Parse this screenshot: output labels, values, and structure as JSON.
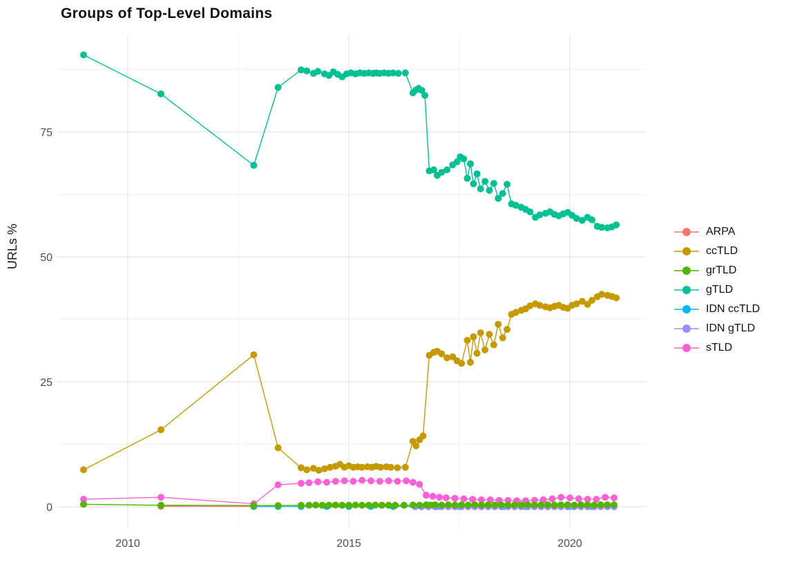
{
  "chart_data": {
    "type": "line",
    "title": "Groups of Top-Level Domains",
    "xlabel": "",
    "ylabel": "URLs %",
    "x_ticks": [
      2010,
      2015,
      2020
    ],
    "x_minor_ticks": [
      2012.5,
      2017.5
    ],
    "y_ticks": [
      0,
      25,
      50,
      75
    ],
    "y_minor_ticks": [
      12.5,
      37.5,
      62.5,
      87.5
    ],
    "x_range": [
      2008.4,
      2021.7
    ],
    "y_range": [
      -4.5,
      94.5
    ],
    "grid": "major+minor, no axis lines (theme_minimal)",
    "legend_position": "right",
    "series": [
      {
        "name": "ARPA",
        "color": "#F8766D",
        "points": [
          [
            2010.75,
            0.1
          ],
          [
            2012.85,
            0.08
          ]
        ]
      },
      {
        "name": "ccTLD",
        "color": "#C49A00",
        "points": [
          [
            2009.0,
            7.4
          ],
          [
            2010.75,
            15.4
          ],
          [
            2012.85,
            30.4
          ],
          [
            2013.4,
            11.8
          ],
          [
            2013.92,
            7.8
          ],
          [
            2014.05,
            7.4
          ],
          [
            2014.2,
            7.7
          ],
          [
            2014.32,
            7.3
          ],
          [
            2014.45,
            7.6
          ],
          [
            2014.58,
            7.9
          ],
          [
            2014.7,
            8.1
          ],
          [
            2014.8,
            8.5
          ],
          [
            2014.9,
            7.9
          ],
          [
            2015.0,
            8.2
          ],
          [
            2015.1,
            7.9
          ],
          [
            2015.2,
            8.0
          ],
          [
            2015.3,
            7.9
          ],
          [
            2015.42,
            8.0
          ],
          [
            2015.52,
            7.9
          ],
          [
            2015.62,
            8.1
          ],
          [
            2015.72,
            7.9
          ],
          [
            2015.85,
            8.0
          ],
          [
            2015.95,
            7.9
          ],
          [
            2016.1,
            7.8
          ],
          [
            2016.28,
            7.9
          ],
          [
            2016.45,
            13.1
          ],
          [
            2016.52,
            12.2
          ],
          [
            2016.6,
            13.4
          ],
          [
            2016.68,
            14.2
          ],
          [
            2016.82,
            30.3
          ],
          [
            2016.92,
            30.9
          ],
          [
            2017.0,
            31.1
          ],
          [
            2017.1,
            30.6
          ],
          [
            2017.22,
            29.8
          ],
          [
            2017.35,
            30.0
          ],
          [
            2017.45,
            29.2
          ],
          [
            2017.55,
            28.7
          ],
          [
            2017.68,
            33.3
          ],
          [
            2017.75,
            28.9
          ],
          [
            2017.82,
            34.0
          ],
          [
            2017.9,
            30.7
          ],
          [
            2017.98,
            34.8
          ],
          [
            2018.08,
            31.4
          ],
          [
            2018.18,
            34.5
          ],
          [
            2018.28,
            32.4
          ],
          [
            2018.38,
            36.5
          ],
          [
            2018.48,
            33.8
          ],
          [
            2018.58,
            35.5
          ],
          [
            2018.68,
            38.5
          ],
          [
            2018.78,
            38.9
          ],
          [
            2018.9,
            39.3
          ],
          [
            2019.0,
            39.6
          ],
          [
            2019.1,
            40.2
          ],
          [
            2019.22,
            40.6
          ],
          [
            2019.32,
            40.3
          ],
          [
            2019.45,
            40.0
          ],
          [
            2019.55,
            39.8
          ],
          [
            2019.65,
            40.1
          ],
          [
            2019.75,
            40.3
          ],
          [
            2019.85,
            39.9
          ],
          [
            2019.95,
            39.7
          ],
          [
            2020.05,
            40.3
          ],
          [
            2020.15,
            40.6
          ],
          [
            2020.28,
            41.1
          ],
          [
            2020.4,
            40.5
          ],
          [
            2020.5,
            41.3
          ],
          [
            2020.62,
            42.0
          ],
          [
            2020.72,
            42.5
          ],
          [
            2020.85,
            42.3
          ],
          [
            2020.95,
            42.1
          ],
          [
            2021.05,
            41.8
          ]
        ]
      },
      {
        "name": "grTLD",
        "color": "#53B400",
        "points": [
          [
            2009.0,
            0.5
          ],
          [
            2010.75,
            0.3
          ],
          [
            2012.85,
            0.25
          ],
          [
            2013.4,
            0.25
          ],
          [
            2013.92,
            0.3
          ],
          [
            2014.1,
            0.3
          ],
          [
            2014.25,
            0.35
          ],
          [
            2014.4,
            0.3
          ],
          [
            2014.55,
            0.3
          ],
          [
            2014.7,
            0.35
          ],
          [
            2014.85,
            0.3
          ],
          [
            2015.0,
            0.3
          ],
          [
            2015.15,
            0.35
          ],
          [
            2015.3,
            0.3
          ],
          [
            2015.45,
            0.3
          ],
          [
            2015.6,
            0.35
          ],
          [
            2015.75,
            0.3
          ],
          [
            2015.9,
            0.3
          ],
          [
            2016.05,
            0.3
          ],
          [
            2016.25,
            0.3
          ],
          [
            2016.45,
            0.35
          ],
          [
            2016.6,
            0.3
          ],
          [
            2016.75,
            0.4
          ],
          [
            2016.85,
            0.35
          ],
          [
            2016.95,
            0.4
          ],
          [
            2017.1,
            0.35
          ],
          [
            2017.25,
            0.4
          ],
          [
            2017.4,
            0.35
          ],
          [
            2017.55,
            0.4
          ],
          [
            2017.7,
            0.35
          ],
          [
            2017.85,
            0.4
          ],
          [
            2018.0,
            0.35
          ],
          [
            2018.15,
            0.4
          ],
          [
            2018.3,
            0.35
          ],
          [
            2018.45,
            0.4
          ],
          [
            2018.6,
            0.35
          ],
          [
            2018.75,
            0.4
          ],
          [
            2018.9,
            0.35
          ],
          [
            2019.05,
            0.4
          ],
          [
            2019.2,
            0.35
          ],
          [
            2019.35,
            0.4
          ],
          [
            2019.5,
            0.4
          ],
          [
            2019.65,
            0.35
          ],
          [
            2019.8,
            0.4
          ],
          [
            2019.95,
            0.4
          ],
          [
            2020.1,
            0.35
          ],
          [
            2020.25,
            0.4
          ],
          [
            2020.4,
            0.4
          ],
          [
            2020.55,
            0.35
          ],
          [
            2020.7,
            0.4
          ],
          [
            2020.85,
            0.4
          ],
          [
            2021.0,
            0.4
          ]
        ]
      },
      {
        "name": "gTLD",
        "color": "#00C094",
        "points": [
          [
            2009.0,
            90.4
          ],
          [
            2010.75,
            82.6
          ],
          [
            2012.85,
            68.3
          ],
          [
            2013.4,
            83.9
          ],
          [
            2013.92,
            87.4
          ],
          [
            2014.05,
            87.2
          ],
          [
            2014.2,
            86.7
          ],
          [
            2014.3,
            87.1
          ],
          [
            2014.45,
            86.6
          ],
          [
            2014.55,
            86.3
          ],
          [
            2014.65,
            87.0
          ],
          [
            2014.75,
            86.5
          ],
          [
            2014.85,
            86.0
          ],
          [
            2014.95,
            86.6
          ],
          [
            2015.05,
            86.8
          ],
          [
            2015.15,
            86.6
          ],
          [
            2015.25,
            86.8
          ],
          [
            2015.35,
            86.7
          ],
          [
            2015.45,
            86.8
          ],
          [
            2015.55,
            86.7
          ],
          [
            2015.62,
            86.8
          ],
          [
            2015.7,
            86.7
          ],
          [
            2015.8,
            86.8
          ],
          [
            2015.9,
            86.7
          ],
          [
            2016.0,
            86.8
          ],
          [
            2016.12,
            86.7
          ],
          [
            2016.28,
            86.8
          ],
          [
            2016.45,
            82.8
          ],
          [
            2016.52,
            83.4
          ],
          [
            2016.58,
            83.7
          ],
          [
            2016.65,
            83.3
          ],
          [
            2016.72,
            82.3
          ],
          [
            2016.82,
            67.2
          ],
          [
            2016.92,
            67.4
          ],
          [
            2017.0,
            66.3
          ],
          [
            2017.1,
            66.9
          ],
          [
            2017.22,
            67.4
          ],
          [
            2017.35,
            68.4
          ],
          [
            2017.45,
            69.0
          ],
          [
            2017.52,
            70.0
          ],
          [
            2017.6,
            69.6
          ],
          [
            2017.68,
            65.7
          ],
          [
            2017.75,
            68.6
          ],
          [
            2017.82,
            64.6
          ],
          [
            2017.9,
            66.6
          ],
          [
            2017.98,
            63.6
          ],
          [
            2018.08,
            65.1
          ],
          [
            2018.18,
            63.3
          ],
          [
            2018.28,
            64.7
          ],
          [
            2018.38,
            61.7
          ],
          [
            2018.48,
            62.7
          ],
          [
            2018.58,
            64.5
          ],
          [
            2018.68,
            60.6
          ],
          [
            2018.78,
            60.3
          ],
          [
            2018.9,
            59.9
          ],
          [
            2019.0,
            59.5
          ],
          [
            2019.1,
            59.0
          ],
          [
            2019.22,
            57.9
          ],
          [
            2019.32,
            58.4
          ],
          [
            2019.45,
            58.7
          ],
          [
            2019.55,
            59.0
          ],
          [
            2019.65,
            58.5
          ],
          [
            2019.75,
            58.2
          ],
          [
            2019.85,
            58.6
          ],
          [
            2019.95,
            58.9
          ],
          [
            2020.05,
            58.3
          ],
          [
            2020.15,
            57.7
          ],
          [
            2020.28,
            57.3
          ],
          [
            2020.4,
            57.9
          ],
          [
            2020.5,
            57.4
          ],
          [
            2020.62,
            56.1
          ],
          [
            2020.72,
            55.9
          ],
          [
            2020.85,
            55.8
          ],
          [
            2020.95,
            56.0
          ],
          [
            2021.05,
            56.4
          ]
        ]
      },
      {
        "name": "IDN ccTLD",
        "color": "#00B6EB",
        "points": [
          [
            2012.85,
            0.05
          ],
          [
            2013.4,
            0.05
          ],
          [
            2013.92,
            0.05
          ],
          [
            2014.5,
            0.05
          ],
          [
            2015.0,
            0.05
          ],
          [
            2015.5,
            0.05
          ],
          [
            2016.0,
            0.05
          ],
          [
            2016.5,
            0.05
          ],
          [
            2017.0,
            0.05
          ],
          [
            2017.5,
            0.05
          ],
          [
            2018.0,
            0.05
          ],
          [
            2018.5,
            0.05
          ],
          [
            2019.0,
            0.05
          ],
          [
            2019.5,
            0.05
          ],
          [
            2020.0,
            0.05
          ],
          [
            2020.5,
            0.05
          ],
          [
            2021.0,
            0.05
          ]
        ]
      },
      {
        "name": "IDN gTLD",
        "color": "#A58AFF",
        "points": [
          [
            2016.5,
            0.0
          ],
          [
            2016.65,
            0.0
          ],
          [
            2016.8,
            0.0
          ],
          [
            2016.95,
            0.0
          ],
          [
            2017.1,
            0.0
          ],
          [
            2017.25,
            0.0
          ],
          [
            2017.4,
            0.0
          ],
          [
            2017.55,
            0.0
          ],
          [
            2017.7,
            0.0
          ],
          [
            2017.85,
            0.0
          ],
          [
            2018.0,
            0.0
          ],
          [
            2018.15,
            0.0
          ],
          [
            2018.3,
            0.0
          ],
          [
            2018.45,
            0.0
          ],
          [
            2018.6,
            0.0
          ],
          [
            2018.75,
            0.0
          ],
          [
            2018.9,
            0.0
          ],
          [
            2019.05,
            0.0
          ],
          [
            2019.2,
            0.0
          ],
          [
            2019.35,
            0.0
          ],
          [
            2019.5,
            0.0
          ],
          [
            2019.65,
            0.0
          ],
          [
            2019.8,
            0.0
          ],
          [
            2019.95,
            0.0
          ],
          [
            2020.1,
            0.0
          ],
          [
            2020.25,
            0.0
          ],
          [
            2020.4,
            0.0
          ],
          [
            2020.55,
            0.0
          ],
          [
            2020.7,
            0.0
          ],
          [
            2020.85,
            0.0
          ],
          [
            2021.0,
            0.0
          ]
        ]
      },
      {
        "name": "sTLD",
        "color": "#FB61D7",
        "points": [
          [
            2009.0,
            1.5
          ],
          [
            2010.75,
            1.9
          ],
          [
            2012.85,
            0.6
          ],
          [
            2013.4,
            4.4
          ],
          [
            2013.92,
            4.7
          ],
          [
            2014.1,
            4.8
          ],
          [
            2014.3,
            5.0
          ],
          [
            2014.5,
            4.9
          ],
          [
            2014.7,
            5.1
          ],
          [
            2014.9,
            5.2
          ],
          [
            2015.1,
            5.1
          ],
          [
            2015.3,
            5.3
          ],
          [
            2015.5,
            5.2
          ],
          [
            2015.7,
            5.1
          ],
          [
            2015.9,
            5.2
          ],
          [
            2016.1,
            5.1
          ],
          [
            2016.3,
            5.2
          ],
          [
            2016.45,
            4.9
          ],
          [
            2016.6,
            4.5
          ],
          [
            2016.75,
            2.3
          ],
          [
            2016.9,
            2.1
          ],
          [
            2017.05,
            1.9
          ],
          [
            2017.2,
            1.8
          ],
          [
            2017.4,
            1.7
          ],
          [
            2017.6,
            1.6
          ],
          [
            2017.8,
            1.5
          ],
          [
            2018.0,
            1.4
          ],
          [
            2018.2,
            1.4
          ],
          [
            2018.4,
            1.3
          ],
          [
            2018.6,
            1.3
          ],
          [
            2018.8,
            1.2
          ],
          [
            2019.0,
            1.2
          ],
          [
            2019.2,
            1.3
          ],
          [
            2019.4,
            1.4
          ],
          [
            2019.6,
            1.6
          ],
          [
            2019.8,
            1.9
          ],
          [
            2020.0,
            1.8
          ],
          [
            2020.2,
            1.6
          ],
          [
            2020.4,
            1.5
          ],
          [
            2020.6,
            1.5
          ],
          [
            2020.8,
            1.9
          ],
          [
            2021.0,
            1.8
          ]
        ]
      }
    ],
    "colors": {
      "grid_major": "#e4e4e4",
      "grid_minor": "#f1f1f1",
      "tick_text": "#4d4d4d",
      "title_text": "#111111"
    }
  }
}
